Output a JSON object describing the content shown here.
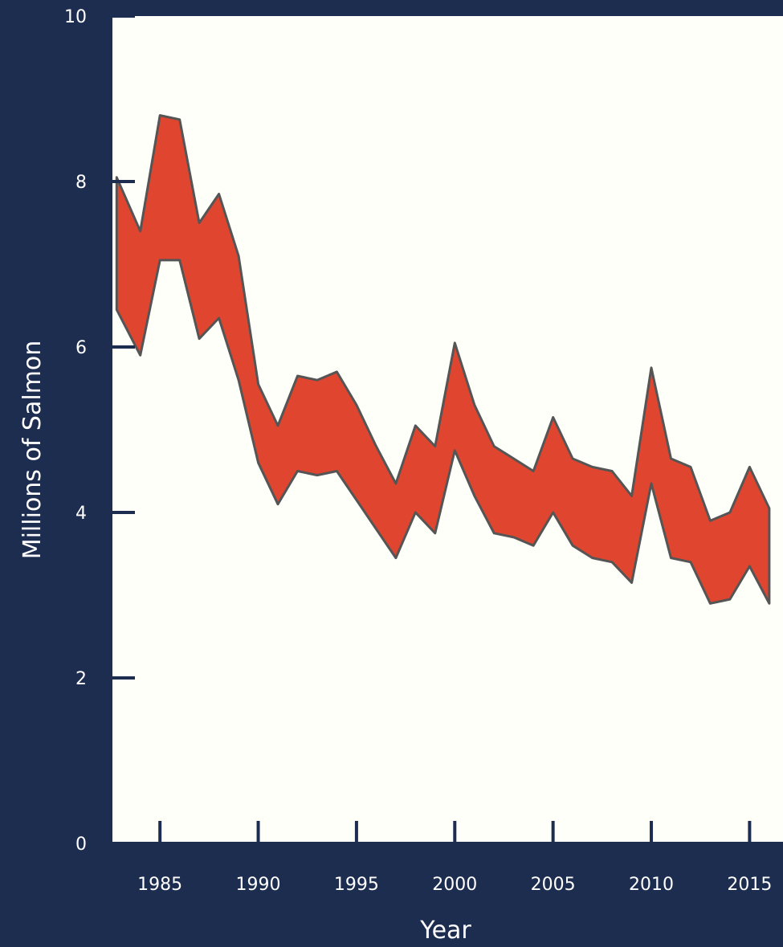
{
  "chart_data": {
    "type": "area",
    "ylabel": "Millions of Salmon",
    "xlabel": "Year",
    "xlim": [
      1982.5,
      2016.7
    ],
    "ylim": [
      0,
      10
    ],
    "x_ticks": [
      1985,
      1990,
      1995,
      2000,
      2005,
      2010,
      2015
    ],
    "x_tick_labels": [
      "1985",
      "1990",
      "1995",
      "2000",
      "2005",
      "2010",
      "2015"
    ],
    "y_ticks": [
      0,
      2,
      4,
      6,
      8,
      10
    ],
    "y_tick_labels": [
      "0",
      "2",
      "4",
      "6",
      "8",
      "10"
    ],
    "grid": false,
    "x": [
      1982.8,
      1984,
      1985,
      1986,
      1987,
      1988,
      1989,
      1990,
      1991,
      1992,
      1993,
      1994,
      1995,
      1996,
      1997,
      1998,
      1999,
      2000,
      2001,
      2002,
      2003,
      2004,
      2005,
      2006,
      2007,
      2008,
      2009,
      2010,
      2011,
      2012,
      2013,
      2014,
      2015,
      2016
    ],
    "series": [
      {
        "role": "upper",
        "values": [
          8.05,
          7.4,
          8.8,
          8.75,
          7.5,
          7.85,
          7.1,
          5.55,
          5.05,
          5.65,
          5.6,
          5.7,
          5.3,
          4.8,
          4.35,
          5.05,
          4.8,
          6.05,
          5.3,
          4.8,
          4.65,
          4.5,
          5.15,
          4.65,
          4.55,
          4.5,
          4.2,
          5.75,
          4.65,
          4.55,
          3.9,
          4.0,
          4.55,
          4.05
        ]
      },
      {
        "role": "lower",
        "values": [
          6.45,
          5.9,
          7.05,
          7.05,
          6.1,
          6.35,
          5.6,
          4.6,
          4.1,
          4.5,
          4.45,
          4.5,
          4.15,
          3.8,
          3.45,
          4.0,
          3.75,
          4.75,
          4.2,
          3.75,
          3.7,
          3.6,
          4.0,
          3.6,
          3.45,
          3.4,
          3.15,
          4.35,
          3.45,
          3.4,
          2.9,
          2.95,
          3.35,
          2.9
        ]
      }
    ],
    "colors": {
      "background": "#1d2d50",
      "plot_area": "#fffffa",
      "band_fill": "#e0452f",
      "band_stroke": "#555555",
      "axis": "#1d2d50",
      "text": "#ffffff"
    }
  }
}
